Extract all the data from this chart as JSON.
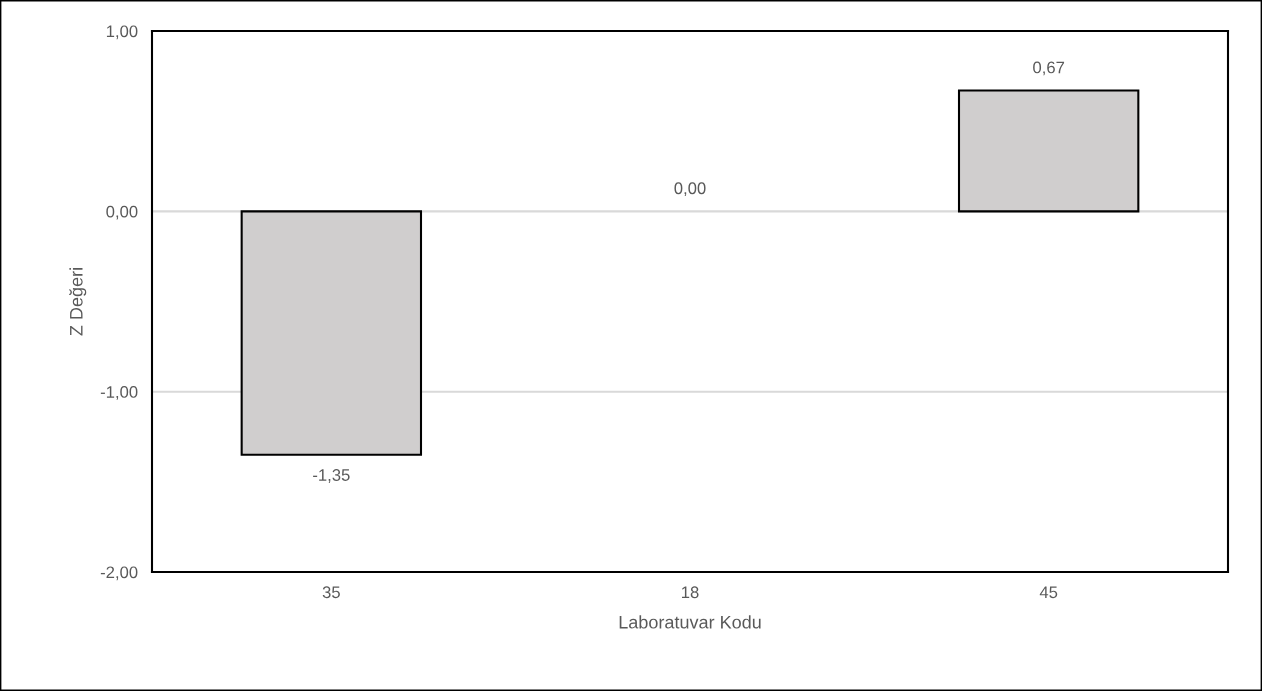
{
  "chart_data": {
    "type": "bar",
    "xlabel": "Laboratuvar Kodu",
    "ylabel": "Z Değeri",
    "categories": [
      "35",
      "18",
      "45"
    ],
    "series": [
      {
        "color": "#d0cece",
        "values": [
          -1.35,
          0.0,
          0.67
        ],
        "value_labels": [
          "-1,35",
          "0,00",
          "0,67"
        ]
      }
    ],
    "ylim": [
      -2,
      1
    ],
    "yticks": [
      {
        "value": -2,
        "label": "-2,00"
      },
      {
        "value": -1,
        "label": "-1,00"
      },
      {
        "value": 0,
        "label": "0,00"
      },
      {
        "value": 1,
        "label": "1,00"
      }
    ],
    "grid": "y"
  }
}
